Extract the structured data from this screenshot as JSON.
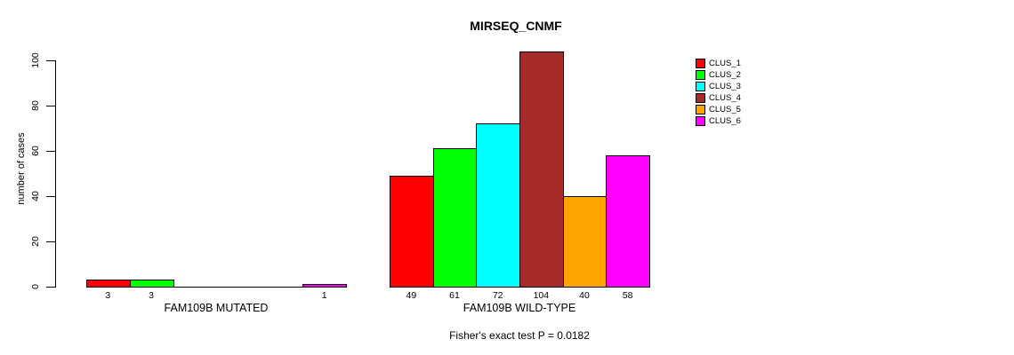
{
  "chart_data": {
    "type": "bar",
    "title": "MIRSEQ_CNMF",
    "ylabel": "number of cases",
    "ylim": [
      0,
      100
    ],
    "yticks": [
      0,
      20,
      40,
      60,
      80,
      100
    ],
    "grid": false,
    "legend_position": "right",
    "series": [
      {
        "name": "CLUS_1",
        "color": "#FF0000"
      },
      {
        "name": "CLUS_2",
        "color": "#00FF00"
      },
      {
        "name": "CLUS_3",
        "color": "#00FFFF"
      },
      {
        "name": "CLUS_4",
        "color": "#A52A2A"
      },
      {
        "name": "CLUS_5",
        "color": "#FFA500"
      },
      {
        "name": "CLUS_6",
        "color": "#FF00FF"
      }
    ],
    "groups": [
      {
        "label": "FAM109B MUTATED",
        "values": [
          3,
          3,
          0,
          0,
          0,
          1
        ],
        "bar_labels": [
          "3",
          "3",
          "",
          "",
          "",
          "1"
        ]
      },
      {
        "label": "FAM109B WILD-TYPE",
        "values": [
          49,
          61,
          72,
          104,
          40,
          58
        ],
        "bar_labels": [
          "49",
          "61",
          "72",
          "104",
          "40",
          "58"
        ]
      }
    ],
    "footer": "Fisher's exact test P = 0.0182"
  }
}
